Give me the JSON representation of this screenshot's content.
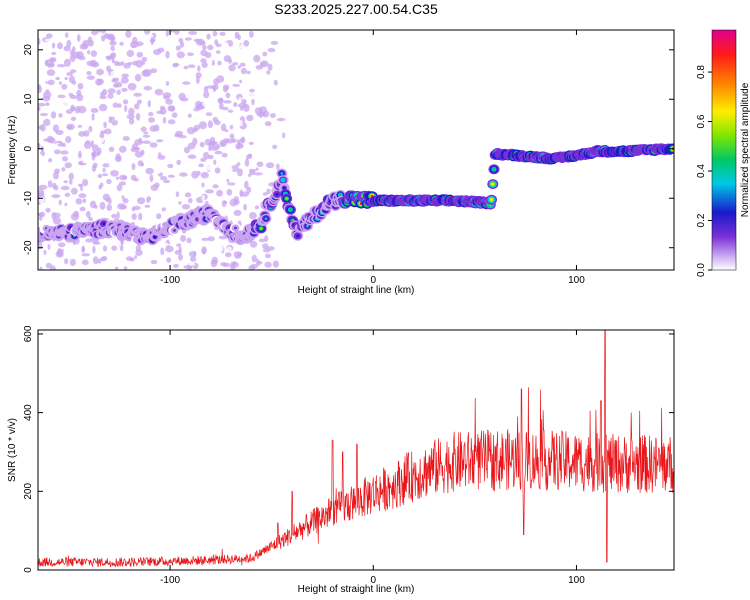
{
  "title": "S233.2025.227.00.54.C35",
  "chart_data": [
    {
      "type": "heatmap",
      "xlabel": "Height of straight line (km)",
      "ylabel": "Frequency (Hz)",
      "xlim": [
        -165,
        148
      ],
      "ylim": [
        -24.5,
        24
      ],
      "xticks": [
        -100,
        0,
        100
      ],
      "yticks": [
        -20,
        -10,
        0,
        10,
        20
      ],
      "colorbar": {
        "label": "Normalized spectral amplitude",
        "range": [
          0,
          0.97
        ],
        "ticks": [
          "0.0",
          "0.2",
          "0.4",
          "0.6",
          "0.8"
        ],
        "colormap": [
          "#ffffff",
          "#c9a6f0",
          "#7a2fd6",
          "#1a1acc",
          "#00c8e6",
          "#00c864",
          "#7fe600",
          "#ffee00",
          "#ff8000",
          "#ff1a1a",
          "#e00090"
        ]
      },
      "ridge": [
        {
          "x": -150,
          "y": -17
        },
        {
          "x": -130,
          "y": -16
        },
        {
          "x": -110,
          "y": -18
        },
        {
          "x": -95,
          "y": -15
        },
        {
          "x": -80,
          "y": -13
        },
        {
          "x": -65,
          "y": -18
        },
        {
          "x": -55,
          "y": -15
        },
        {
          "x": -45,
          "y": -6
        },
        {
          "x": -38,
          "y": -17
        },
        {
          "x": -30,
          "y": -14
        },
        {
          "x": -22,
          "y": -11
        },
        {
          "x": -15,
          "y": -10
        },
        {
          "x": 0,
          "y": -10.5
        },
        {
          "x": 20,
          "y": -10.5
        },
        {
          "x": 40,
          "y": -10.5
        },
        {
          "x": 58,
          "y": -11
        },
        {
          "x": 60,
          "y": -1
        },
        {
          "x": 75,
          "y": -1.5
        },
        {
          "x": 90,
          "y": -2
        },
        {
          "x": 105,
          "y": -1
        },
        {
          "x": 110,
          "y": -0.5
        },
        {
          "x": 125,
          "y": -0.5
        },
        {
          "x": 145,
          "y": 0
        }
      ],
      "noise_region_x": [
        -165,
        -60
      ]
    },
    {
      "type": "line",
      "xlabel": "Height of straight line (km)",
      "ylabel": "SNR (10 * v/v)",
      "xlim": [
        -165,
        148
      ],
      "ylim": [
        0,
        610
      ],
      "xticks": [
        -100,
        0,
        100
      ],
      "yticks": [
        0,
        200,
        400,
        600
      ],
      "color": "#e8161a",
      "envelope": [
        {
          "x": -165,
          "y": 20
        },
        {
          "x": -120,
          "y": 20
        },
        {
          "x": -80,
          "y": 25
        },
        {
          "x": -60,
          "y": 30
        },
        {
          "x": -50,
          "y": 60
        },
        {
          "x": -40,
          "y": 90
        },
        {
          "x": -30,
          "y": 120
        },
        {
          "x": -20,
          "y": 150
        },
        {
          "x": -10,
          "y": 170
        },
        {
          "x": 0,
          "y": 195
        },
        {
          "x": 10,
          "y": 215
        },
        {
          "x": 20,
          "y": 240
        },
        {
          "x": 30,
          "y": 260
        },
        {
          "x": 40,
          "y": 275
        },
        {
          "x": 60,
          "y": 280
        },
        {
          "x": 80,
          "y": 280
        },
        {
          "x": 100,
          "y": 275
        },
        {
          "x": 120,
          "y": 270
        },
        {
          "x": 148,
          "y": 268
        }
      ],
      "spikes": [
        {
          "x": -47,
          "y": 120
        },
        {
          "x": -40,
          "y": 200
        },
        {
          "x": -20,
          "y": 330
        },
        {
          "x": -15,
          "y": 300
        },
        {
          "x": -8,
          "y": 320
        },
        {
          "x": 73,
          "y": 460
        },
        {
          "x": 74,
          "y": 90
        },
        {
          "x": 112,
          "y": 430
        },
        {
          "x": 114,
          "y": 610
        },
        {
          "x": 115,
          "y": 20
        }
      ]
    }
  ]
}
